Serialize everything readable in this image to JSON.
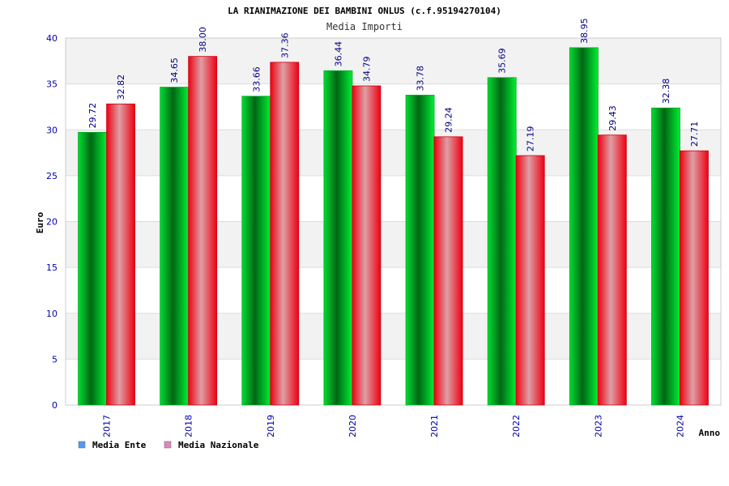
{
  "chart_data": {
    "type": "bar",
    "title": "LA RIANIMAZIONE DEI BAMBINI ONLUS (c.f.95194270104)",
    "subtitle": "Media Importi",
    "xlabel": "Anno",
    "ylabel": "Euro",
    "ylim": [
      0,
      40
    ],
    "yticks": [
      0,
      5,
      10,
      15,
      20,
      25,
      30,
      35,
      40
    ],
    "grid": true,
    "legend_position": "bottom-left",
    "categories": [
      "2017",
      "2018",
      "2019",
      "2020",
      "2021",
      "2022",
      "2023",
      "2024"
    ],
    "series": [
      {
        "name": "Media Ente",
        "legend_color": "#5599ee",
        "bar_color": "#00cc33",
        "values": [
          29.72,
          34.65,
          33.66,
          36.44,
          33.78,
          35.69,
          38.95,
          32.38
        ],
        "labels": [
          "29.72",
          "34.65",
          "33.66",
          "36.44",
          "33.78",
          "35.69",
          "38.95",
          "32.38"
        ]
      },
      {
        "name": "Media Nazionale",
        "legend_color": "#dd88bb",
        "bar_color": "#ee1122",
        "values": [
          32.82,
          38.0,
          37.36,
          34.79,
          29.24,
          27.19,
          29.43,
          27.71
        ],
        "labels": [
          "32.82",
          "38.00",
          "37.36",
          "34.79",
          "29.24",
          "27.19",
          "29.43",
          "27.71"
        ]
      }
    ]
  }
}
